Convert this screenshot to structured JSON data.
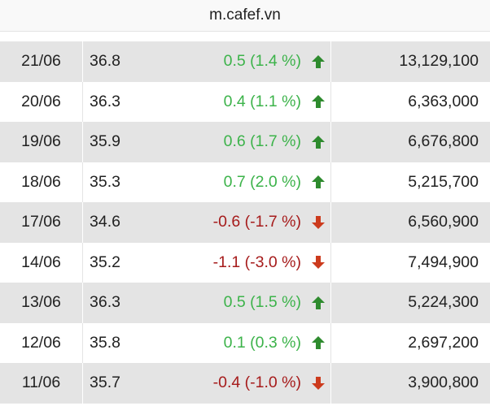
{
  "browser": {
    "url": "m.cafef.vn"
  },
  "colors": {
    "up": "#3cb34a",
    "down": "#a61b1b",
    "arrow_up": "#2e8b2e",
    "arrow_down": "#cc3b1d"
  },
  "rows": [
    {
      "date": "21/06",
      "price": "36.8",
      "change": "0.5 (1.4 %)",
      "direction": "up",
      "volume": "13,129,100"
    },
    {
      "date": "20/06",
      "price": "36.3",
      "change": "0.4 (1.1 %)",
      "direction": "up",
      "volume": "6,363,000"
    },
    {
      "date": "19/06",
      "price": "35.9",
      "change": "0.6 (1.7 %)",
      "direction": "up",
      "volume": "6,676,800"
    },
    {
      "date": "18/06",
      "price": "35.3",
      "change": "0.7 (2.0 %)",
      "direction": "up",
      "volume": "5,215,700"
    },
    {
      "date": "17/06",
      "price": "34.6",
      "change": "-0.6 (-1.7 %)",
      "direction": "down",
      "volume": "6,560,900"
    },
    {
      "date": "14/06",
      "price": "35.2",
      "change": "-1.1 (-3.0 %)",
      "direction": "down",
      "volume": "7,494,900"
    },
    {
      "date": "13/06",
      "price": "36.3",
      "change": "0.5 (1.5 %)",
      "direction": "up",
      "volume": "5,224,300"
    },
    {
      "date": "12/06",
      "price": "35.8",
      "change": "0.1 (0.3 %)",
      "direction": "up",
      "volume": "2,697,200"
    },
    {
      "date": "11/06",
      "price": "35.7",
      "change": "-0.4 (-1.0 %)",
      "direction": "down",
      "volume": "3,900,800"
    }
  ]
}
